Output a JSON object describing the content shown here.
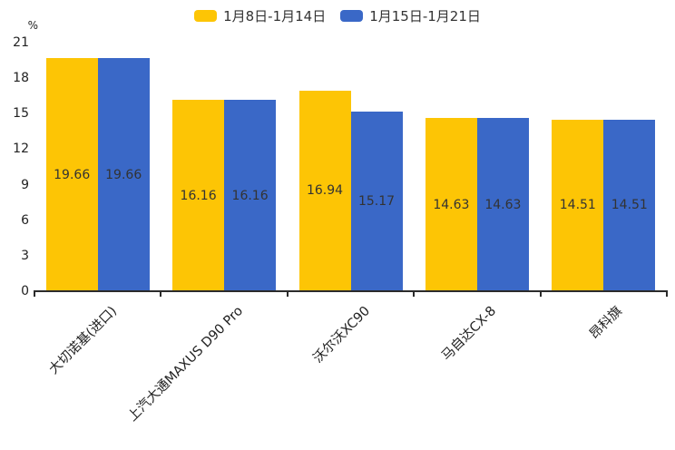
{
  "chart_data": {
    "type": "bar",
    "title": "",
    "unit": "%",
    "categories": [
      "大切诺基(进口)",
      "上汽大通MAXUS D90 Pro",
      "沃尔沃XC90",
      "马自达CX-8",
      "昂科旗"
    ],
    "series": [
      {
        "name": "1月8日-1月14日",
        "color": "#fdc505",
        "values": [
          19.66,
          16.16,
          16.94,
          14.63,
          14.51
        ]
      },
      {
        "name": "1月15日-1月21日",
        "color": "#3a68c7",
        "values": [
          19.66,
          16.16,
          15.17,
          14.63,
          14.51
        ]
      }
    ],
    "ylim": [
      0,
      21
    ],
    "y_ticks": [
      0,
      3,
      6,
      9,
      12,
      15,
      18,
      21
    ],
    "legend_position": "top",
    "grid": false,
    "value_labels_inside_bars": true,
    "axis_color": "#2b2b2b",
    "text_color": "#222222",
    "value_label_color": "#333333"
  }
}
